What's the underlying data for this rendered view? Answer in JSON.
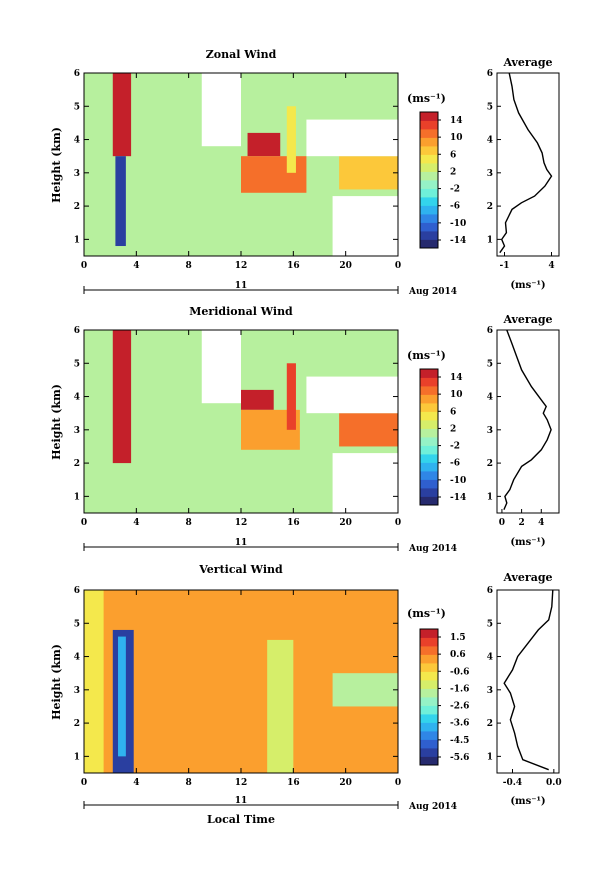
{
  "figure": {
    "xlabel_bottom": "Local Time",
    "date_label": "Aug 2014",
    "day_label": "11"
  },
  "chart_data": [
    {
      "type": "heatmap",
      "title": "Zonal Wind",
      "ylabel": "Height (km)",
      "xlim": [
        0,
        24
      ],
      "ylim": [
        0.5,
        6
      ],
      "xticks": [
        "0",
        "4",
        "8",
        "12",
        "16",
        "20",
        "0"
      ],
      "yticks": [
        "1",
        "2",
        "3",
        "4",
        "5",
        "6"
      ],
      "colorbar": {
        "unit": "(ms⁻¹)",
        "levels": [
          -16,
          -14,
          -12,
          -10,
          -8,
          -6,
          -4,
          -2,
          0,
          2,
          4,
          6,
          8,
          10,
          12,
          14,
          16
        ],
        "tick_labels": [
          "14",
          "10",
          "6",
          "2",
          "-2",
          "-6",
          "-10",
          "-14"
        ]
      },
      "regions": [
        {
          "t0": 0,
          "t1": 2,
          "z0": 0.5,
          "z1": 6,
          "value": 0
        },
        {
          "t0": 2.2,
          "t1": 3.6,
          "z0": 3.5,
          "z1": 6,
          "value": 16
        },
        {
          "t0": 2.4,
          "t1": 3.2,
          "z0": 0.8,
          "z1": 3.5,
          "value": -14
        },
        {
          "t0": 12.5,
          "t1": 15,
          "z0": 3.5,
          "z1": 4.2,
          "value": 14
        },
        {
          "t0": 12,
          "t1": 17,
          "z0": 2.4,
          "z1": 3.5,
          "value": 10
        },
        {
          "t0": 19.5,
          "t1": 24,
          "z0": 2.5,
          "z1": 3.5,
          "value": 6
        },
        {
          "t0": 15.5,
          "t1": 16.2,
          "z0": 3,
          "z1": 5,
          "value": 4
        }
      ],
      "blanks": [
        {
          "t0": 9,
          "t1": 12,
          "z0": 3.8,
          "z1": 6
        },
        {
          "t0": 17,
          "t1": 24,
          "z0": 3.5,
          "z1": 4.6
        },
        {
          "t0": 19,
          "t1": 24,
          "z0": 0.5,
          "z1": 2.3
        }
      ]
    },
    {
      "type": "line",
      "title": "Average",
      "xlabel": "(ms⁻¹)",
      "xticks": [
        "-1",
        "4"
      ],
      "xlim": [
        -1.8,
        4.8
      ],
      "ylim": [
        0.5,
        6
      ],
      "yticks": [
        "1",
        "2",
        "3",
        "4",
        "5",
        "6"
      ],
      "x": [
        -1.5,
        -1.0,
        -1.3,
        -0.8,
        -0.9,
        -0.2,
        0.8,
        2.2,
        3.3,
        4.0,
        3.5,
        3.2,
        3.0,
        2.5,
        1.5,
        0.5,
        0.0,
        -0.2,
        -0.5
      ],
      "y": [
        0.6,
        0.8,
        1.0,
        1.2,
        1.5,
        1.9,
        2.1,
        2.3,
        2.6,
        2.9,
        3.1,
        3.3,
        3.6,
        3.9,
        4.3,
        4.8,
        5.2,
        5.6,
        6.0
      ]
    },
    {
      "type": "heatmap",
      "title": "Meridional Wind",
      "ylabel": "Height (km)",
      "xlim": [
        0,
        24
      ],
      "ylim": [
        0.5,
        6
      ],
      "xticks": [
        "0",
        "4",
        "8",
        "12",
        "16",
        "20",
        "0"
      ],
      "yticks": [
        "1",
        "2",
        "3",
        "4",
        "5",
        "6"
      ],
      "colorbar": {
        "unit": "(ms⁻¹)",
        "levels": [
          -16,
          -14,
          -12,
          -10,
          -8,
          -6,
          -4,
          -2,
          0,
          2,
          4,
          6,
          8,
          10,
          12,
          14,
          16
        ],
        "tick_labels": [
          "14",
          "10",
          "6",
          "2",
          "-2",
          "-6",
          "-10",
          "-14"
        ]
      },
      "regions": [
        {
          "t0": 0,
          "t1": 2,
          "z0": 0.5,
          "z1": 6,
          "value": 0
        },
        {
          "t0": 2.2,
          "t1": 3.6,
          "z0": 2.0,
          "z1": 6,
          "value": 16
        },
        {
          "t0": 12,
          "t1": 14.5,
          "z0": 3.6,
          "z1": 4.2,
          "value": 14
        },
        {
          "t0": 12,
          "t1": 16.5,
          "z0": 2.4,
          "z1": 3.6,
          "value": 8
        },
        {
          "t0": 19.5,
          "t1": 24,
          "z0": 2.5,
          "z1": 3.5,
          "value": 10
        },
        {
          "t0": 15.5,
          "t1": 16.2,
          "z0": 3,
          "z1": 5,
          "value": 12
        }
      ],
      "blanks": [
        {
          "t0": 9,
          "t1": 12,
          "z0": 3.8,
          "z1": 6
        },
        {
          "t0": 17,
          "t1": 24,
          "z0": 3.5,
          "z1": 4.6
        },
        {
          "t0": 19,
          "t1": 24,
          "z0": 0.5,
          "z1": 2.3
        }
      ]
    },
    {
      "type": "line",
      "title": "Average",
      "xlabel": "(ms⁻¹)",
      "xticks": [
        "0",
        "2",
        "4"
      ],
      "xlim": [
        -0.5,
        5.8
      ],
      "ylim": [
        0.5,
        6
      ],
      "yticks": [
        "1",
        "2",
        "3",
        "4",
        "5",
        "6"
      ],
      "x": [
        0.2,
        0.5,
        0.3,
        0.8,
        1.2,
        2.0,
        3.0,
        4.0,
        4.6,
        5.0,
        4.6,
        4.2,
        4.5,
        4.0,
        3.0,
        2.0,
        1.5,
        1.0,
        0.5
      ],
      "y": [
        0.6,
        0.8,
        1.0,
        1.2,
        1.5,
        1.9,
        2.1,
        2.4,
        2.7,
        3.0,
        3.3,
        3.5,
        3.7,
        3.9,
        4.3,
        4.8,
        5.2,
        5.6,
        6.0
      ]
    },
    {
      "type": "heatmap",
      "title": "Vertical Wind",
      "ylabel": "Height (km)",
      "xlim": [
        0,
        24
      ],
      "ylim": [
        0.5,
        6
      ],
      "xticks": [
        "0",
        "4",
        "8",
        "12",
        "16",
        "20",
        "0"
      ],
      "yticks": [
        "1",
        "2",
        "3",
        "4",
        "5",
        "6"
      ],
      "colorbar": {
        "unit": "(ms⁻¹)",
        "levels": [
          -6,
          -5.5,
          -5,
          -4.5,
          -4,
          -3.5,
          -3,
          -2.5,
          -2,
          -1.5,
          -1,
          -0.5,
          0,
          0.5,
          1,
          1.5,
          2
        ],
        "tick_labels": [
          "1.5",
          "0.6",
          "-0.6",
          "-1.6",
          "-2.6",
          "-3.6",
          "-4.5",
          "-5.6"
        ]
      },
      "background_value": 0.2,
      "regions": [
        {
          "t0": 2.2,
          "t1": 3.8,
          "z0": 0.5,
          "z1": 4.8,
          "value": -5.5
        },
        {
          "t0": 2.6,
          "t1": 3.2,
          "z0": 1.0,
          "z1": 4.6,
          "value": -4.0
        },
        {
          "t0": 0,
          "t1": 1.5,
          "z0": 0.5,
          "z1": 6,
          "value": -0.6
        },
        {
          "t0": 14,
          "t1": 16,
          "z0": 0.5,
          "z1": 4.5,
          "value": -1.2
        },
        {
          "t0": 19,
          "t1": 24,
          "z0": 2.5,
          "z1": 3.5,
          "value": -1.6
        }
      ]
    },
    {
      "type": "line",
      "title": "Average",
      "xlabel": "(ms⁻¹)",
      "xticks": [
        "-0.4",
        "0.0"
      ],
      "xlim": [
        -0.55,
        0.05
      ],
      "ylim": [
        0.5,
        6
      ],
      "yticks": [
        "1",
        "2",
        "3",
        "4",
        "5",
        "6"
      ],
      "x": [
        -0.05,
        -0.3,
        -0.35,
        -0.38,
        -0.42,
        -0.38,
        -0.42,
        -0.48,
        -0.4,
        -0.35,
        -0.25,
        -0.15,
        -0.05,
        -0.02,
        -0.01
      ],
      "y": [
        0.6,
        0.9,
        1.3,
        1.7,
        2.1,
        2.5,
        2.9,
        3.2,
        3.6,
        4.0,
        4.4,
        4.8,
        5.1,
        5.5,
        6.0
      ]
    }
  ]
}
